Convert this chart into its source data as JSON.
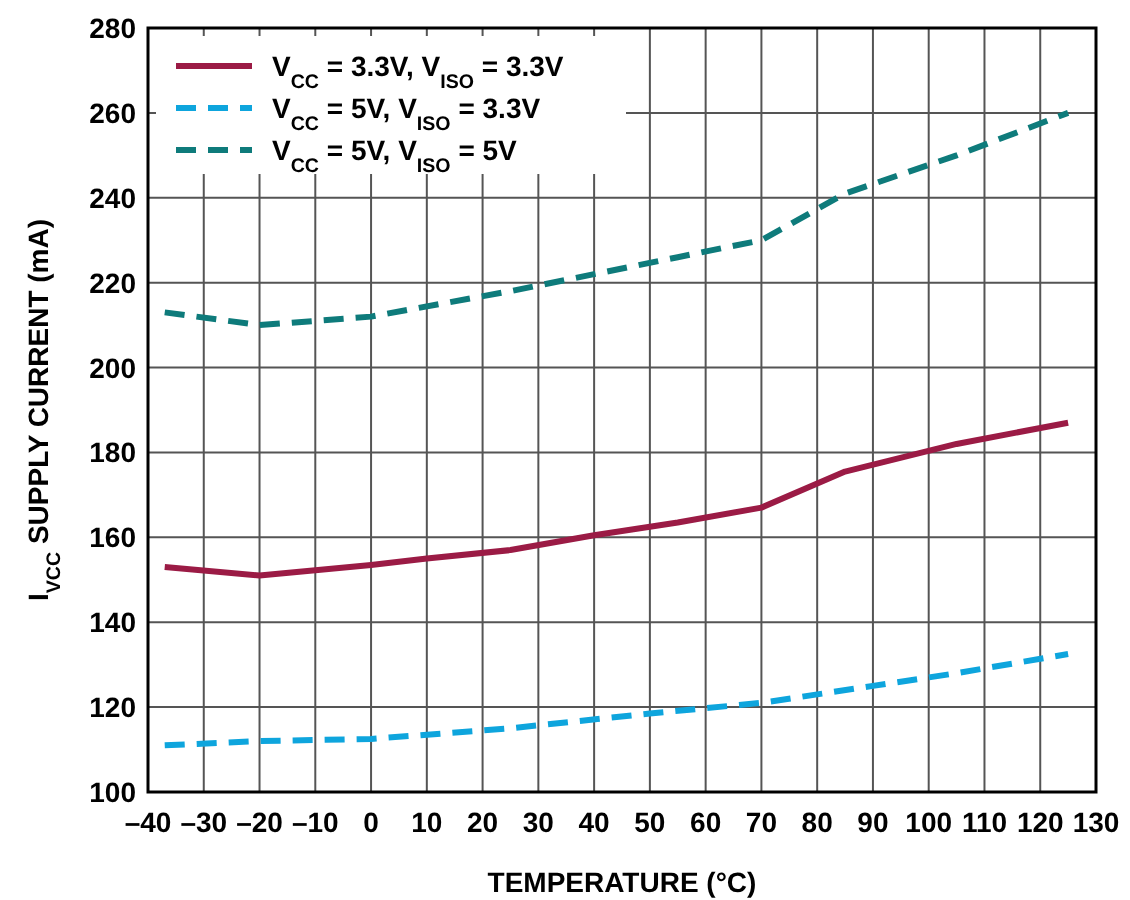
{
  "chart_data": {
    "type": "line",
    "xlabel": "TEMPERATURE (°C)",
    "ylabel": "I$_{VCC}$ SUPPLY CURRENT (mA)",
    "xlim": [
      -40,
      130
    ],
    "ylim": [
      100,
      280
    ],
    "xticks": [
      {
        "value": -40,
        "label": "–40"
      },
      {
        "value": -30,
        "label": "–30"
      },
      {
        "value": -20,
        "label": "–20"
      },
      {
        "value": -10,
        "label": "–10"
      },
      0,
      10,
      20,
      30,
      40,
      50,
      60,
      70,
      80,
      90,
      100,
      110,
      120,
      130
    ],
    "yticks": [
      100,
      120,
      140,
      160,
      180,
      200,
      220,
      240,
      260,
      280
    ],
    "grid": true,
    "legend": "top left",
    "series": [
      {
        "name": "V$_{CC}$ = 3.3V, V$_{ISO}$ = 3.3V",
        "color": "#9b1b45",
        "line_style": "solid",
        "x": [
          -37,
          -20,
          0,
          10,
          25,
          40,
          55,
          70,
          85,
          105,
          125
        ],
        "values": [
          153,
          151,
          153.5,
          155,
          157,
          160.5,
          163.5,
          167,
          175.5,
          182,
          187
        ]
      },
      {
        "name": "V$_{CC}$ = 5V, V$_{ISO}$ = 3.3V",
        "color": "#0ea5dd",
        "line_style": "dashed",
        "x": [
          -37,
          -20,
          0,
          25,
          50,
          70,
          90,
          105,
          125
        ],
        "values": [
          111,
          112,
          112.5,
          115,
          118.5,
          121,
          125,
          128,
          132.5
        ]
      },
      {
        "name": "V$_{CC}$ = 5V, V$_{ISO}$ = 5V",
        "color": "#0e7b7b",
        "line_style": "dashed",
        "x": [
          -37,
          -20,
          0,
          25,
          40,
          55,
          70,
          85,
          105,
          125
        ],
        "values": [
          213,
          210,
          212,
          218,
          222,
          226,
          230,
          241,
          250,
          260
        ]
      }
    ]
  }
}
